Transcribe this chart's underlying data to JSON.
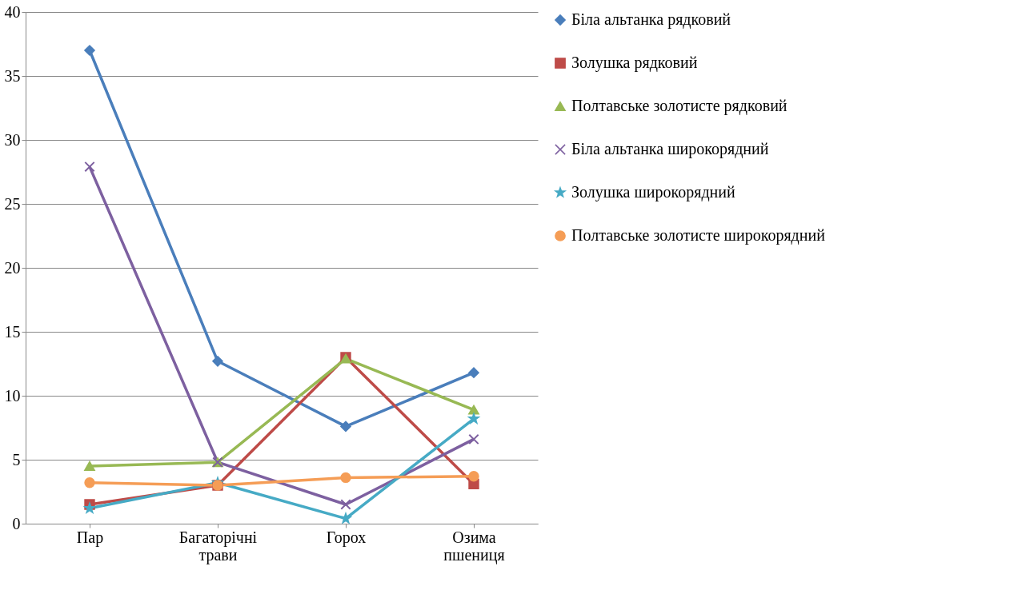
{
  "chart_data": {
    "type": "line",
    "categories": [
      "Пар",
      "Багаторічні трави",
      "Горох",
      "Озима пшениця"
    ],
    "series": [
      {
        "name": "Біла альтанка рядковий",
        "color": "#4a7ebb",
        "marker": "diamond",
        "values": [
          37.0,
          12.7,
          7.6,
          11.8
        ]
      },
      {
        "name": "Золушка рядковий",
        "color": "#be4b48",
        "marker": "square",
        "values": [
          1.5,
          3.0,
          13.0,
          3.1
        ]
      },
      {
        "name": "Полтавське золотисте рядковий",
        "color": "#98b954",
        "marker": "triangle",
        "values": [
          4.5,
          4.8,
          12.9,
          8.9
        ]
      },
      {
        "name": "Біла альтанка широкорядний",
        "color": "#7d60a0",
        "marker": "cross",
        "values": [
          27.9,
          4.8,
          1.5,
          6.6
        ]
      },
      {
        "name": "Золушка широкорядний",
        "color": "#46aac5",
        "marker": "star",
        "values": [
          1.2,
          3.2,
          0.4,
          8.2
        ]
      },
      {
        "name": "Полтавське золотисте широкорядний",
        "color": "#f59d56",
        "marker": "circle",
        "values": [
          3.2,
          3.0,
          3.6,
          3.7
        ]
      }
    ],
    "ylim": [
      0,
      40
    ],
    "yticks": [
      0,
      5,
      10,
      15,
      20,
      25,
      30,
      35,
      40
    ],
    "grid": "y",
    "legend": "right",
    "line_style": "solid"
  }
}
